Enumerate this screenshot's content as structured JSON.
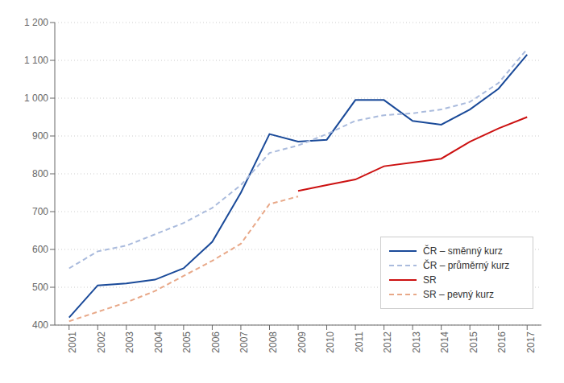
{
  "chart_data": {
    "type": "line",
    "x": [
      2001,
      2002,
      2003,
      2004,
      2005,
      2006,
      2007,
      2008,
      2009,
      2010,
      2011,
      2012,
      2013,
      2014,
      2015,
      2016,
      2017
    ],
    "series": [
      {
        "name": "ČR – směnný kurz",
        "color": "#1a4a99",
        "line_style": "solid",
        "values": [
          420,
          505,
          510,
          520,
          550,
          620,
          750,
          905,
          885,
          890,
          995,
          995,
          940,
          930,
          970,
          1025,
          1115
        ]
      },
      {
        "name": "ČR – průměrný kurz",
        "color": "#aabbdd",
        "line_style": "dashed",
        "values": [
          550,
          595,
          610,
          640,
          670,
          710,
          770,
          855,
          875,
          905,
          940,
          955,
          960,
          970,
          990,
          1040,
          1130
        ]
      },
      {
        "name": "SR",
        "color": "#cc1111",
        "line_style": "solid",
        "values": [
          null,
          null,
          null,
          null,
          null,
          null,
          null,
          null,
          755,
          770,
          785,
          820,
          830,
          840,
          885,
          920,
          950
        ]
      },
      {
        "name": "SR – pevný kurz",
        "color": "#e8a888",
        "line_style": "dashed",
        "values": [
          410,
          435,
          460,
          490,
          530,
          570,
          615,
          720,
          740,
          null,
          null,
          null,
          null,
          null,
          null,
          null,
          null
        ]
      }
    ],
    "xlim": [
      2000.5,
      2017.5
    ],
    "xticks": [
      2001,
      2002,
      2003,
      2004,
      2005,
      2006,
      2007,
      2008,
      2009,
      2010,
      2011,
      2012,
      2013,
      2014,
      2015,
      2016,
      2017
    ],
    "ylim": [
      400,
      1200
    ],
    "yticks": [
      400,
      500,
      600,
      700,
      800,
      900,
      {
        "value": 1000,
        "label": "1 000"
      },
      {
        "value": 1100,
        "label": "1 100"
      },
      {
        "value": 1200,
        "label": "1 200"
      }
    ],
    "grid": true,
    "legend": "lower right"
  }
}
